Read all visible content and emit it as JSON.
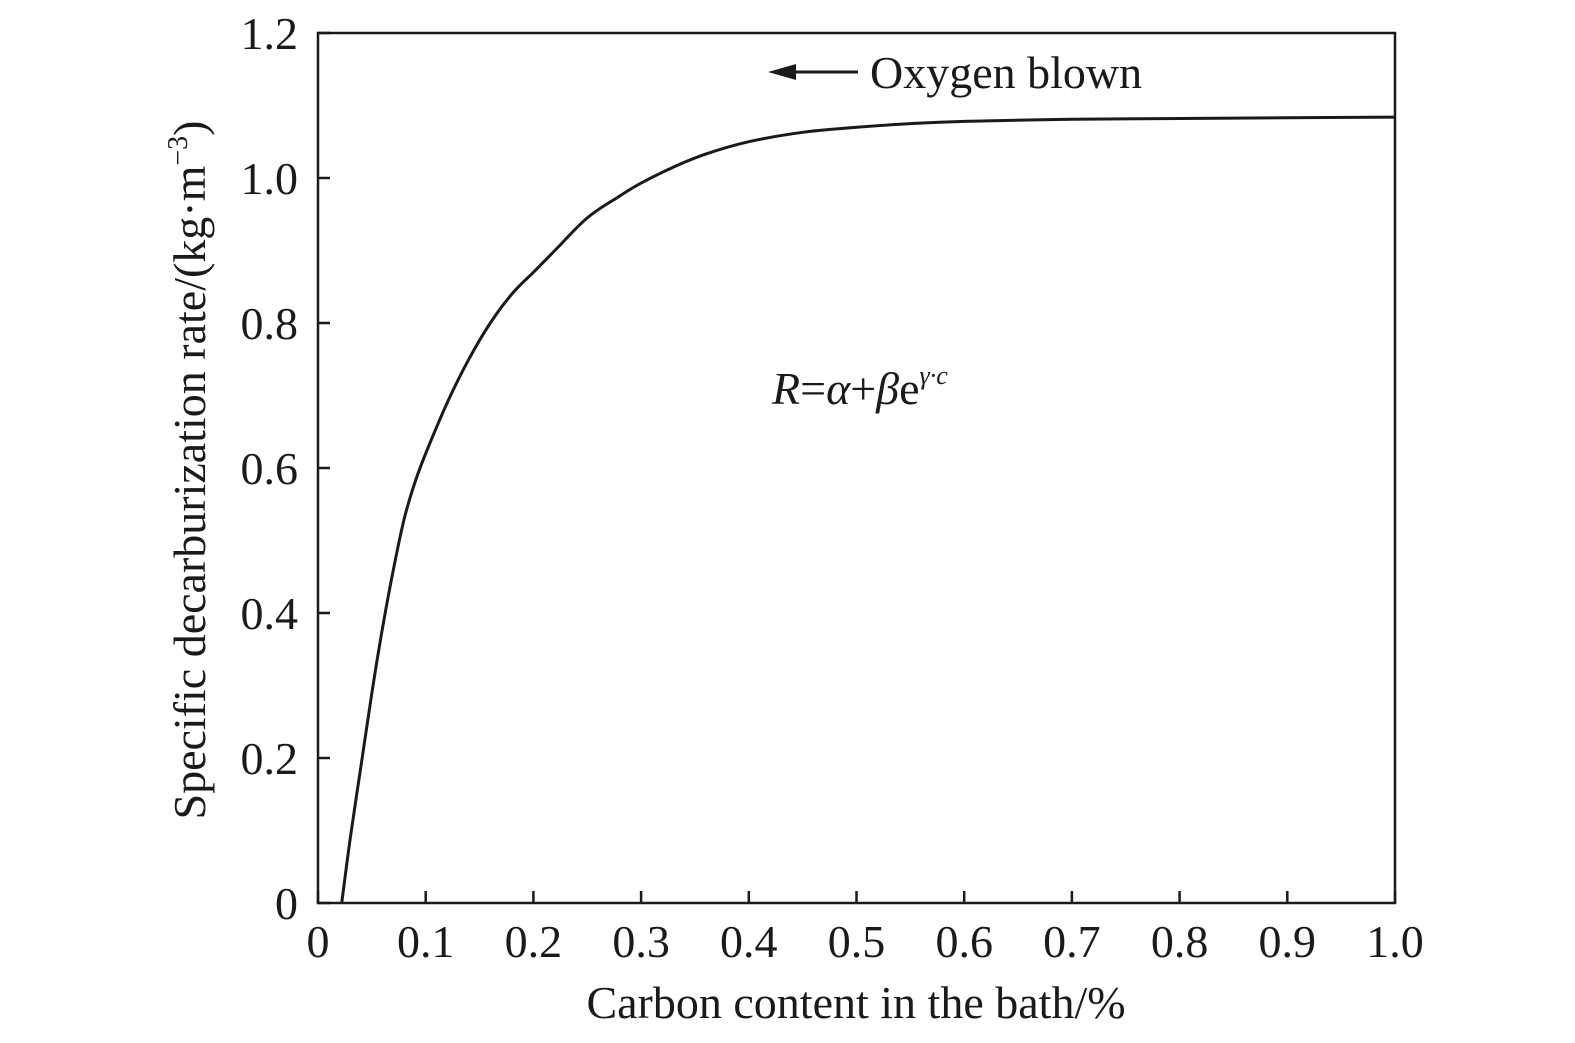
{
  "chart_data": {
    "type": "line",
    "xlabel": "Carbon content in the bath/%",
    "ylabel": "Specific decarburization rate/(kg·m",
    "ylabel_sup": "−3",
    "ylabel_close": ")",
    "xlim": [
      0,
      1.0
    ],
    "ylim": [
      0,
      1.2
    ],
    "x_ticks": [
      "0",
      "0.1",
      "0.2",
      "0.3",
      "0.4",
      "0.5",
      "0.6",
      "0.7",
      "0.8",
      "0.9",
      "1.0"
    ],
    "y_ticks": [
      "0",
      "0.2",
      "0.4",
      "0.6",
      "0.8",
      "1.0",
      "1.2"
    ],
    "grid": false,
    "legend": "none",
    "series": [
      {
        "x": [
          0.022,
          0.03,
          0.04,
          0.05,
          0.06,
          0.07,
          0.08,
          0.09,
          0.1,
          0.12,
          0.14,
          0.16,
          0.18,
          0.2,
          0.22,
          0.25,
          0.28,
          0.3,
          0.33,
          0.36,
          0.4,
          0.45,
          0.5,
          0.55,
          0.6,
          0.7,
          0.8,
          0.9,
          1.0
        ],
        "y": [
          0.0,
          0.09,
          0.19,
          0.29,
          0.38,
          0.46,
          0.53,
          0.58,
          0.62,
          0.69,
          0.75,
          0.8,
          0.84,
          0.87,
          0.9,
          0.945,
          0.975,
          0.993,
          1.015,
          1.033,
          1.05,
          1.063,
          1.07,
          1.075,
          1.078,
          1.081,
          1.082,
          1.083,
          1.084
        ]
      }
    ],
    "annotations": {
      "arrow_label": "Oxygen blown",
      "formula_R": "R",
      "formula_mid1": "=",
      "formula_alpha": "α",
      "formula_mid2": "+",
      "formula_beta": "β",
      "formula_e": "e",
      "formula_exp": "γ·c"
    },
    "colors": {
      "line": "#1a1a1a",
      "axis": "#1a1a1a"
    }
  }
}
